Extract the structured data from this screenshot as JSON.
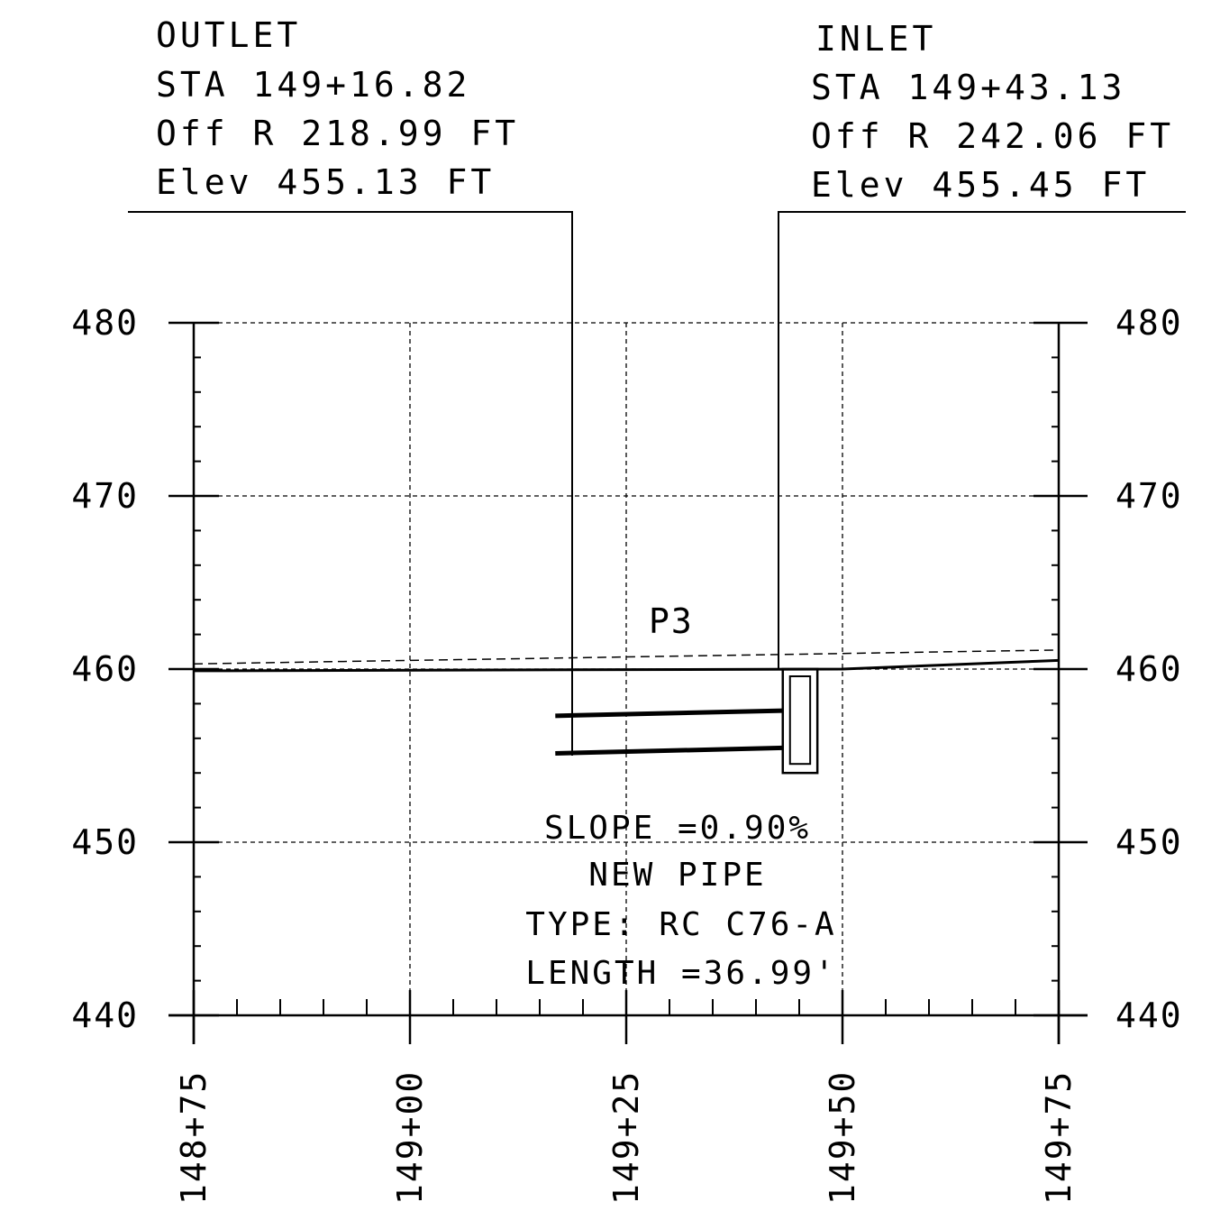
{
  "outlet": {
    "title": "OUTLET",
    "station": "STA 149+16.82",
    "offset": "Off R 218.99 FT",
    "elevation": "Elev 455.13 FT"
  },
  "inlet": {
    "title": "INLET",
    "station": "STA 149+43.13",
    "offset": "Off R 242.06 FT",
    "elevation": "Elev 455.45 FT"
  },
  "structure_label": "P3",
  "pipe_notes": {
    "slope": "SLOPE =0.90%",
    "status": "NEW PIPE",
    "type": "TYPE: RC C76-A",
    "length": "LENGTH =36.99'"
  },
  "chart_data": {
    "type": "line",
    "x_ticks": [
      {
        "value": 0,
        "label": "148+75"
      },
      {
        "value": 25,
        "label": "149+00"
      },
      {
        "value": 50,
        "label": "149+25"
      },
      {
        "value": 75,
        "label": "149+50"
      },
      {
        "value": 100,
        "label": "149+75"
      }
    ],
    "y_ticks": [
      "440",
      "450",
      "460",
      "470",
      "480"
    ],
    "xlim": [
      0,
      100
    ],
    "ylim": [
      440,
      480
    ],
    "grid": true,
    "series": [
      {
        "role": "existing-ground",
        "style": "dashed",
        "x": [
          0,
          100
        ],
        "y": [
          460.3,
          461.1
        ]
      },
      {
        "role": "proposed-ground",
        "style": "solid",
        "x": [
          0,
          75,
          100
        ],
        "y": [
          459.9,
          460.0,
          460.5
        ]
      },
      {
        "role": "pipe-crown",
        "style": "solid-bold",
        "x": [
          41.8,
          68.1
        ],
        "y": [
          457.3,
          457.6
        ]
      },
      {
        "role": "pipe-invert",
        "style": "solid-bold",
        "x": [
          41.8,
          68.1
        ],
        "y": [
          455.13,
          455.45
        ]
      },
      {
        "role": "inlet-structure",
        "style": "box",
        "x": [
          68.1,
          72.1
        ],
        "y": [
          454.0,
          460.0
        ]
      }
    ]
  }
}
